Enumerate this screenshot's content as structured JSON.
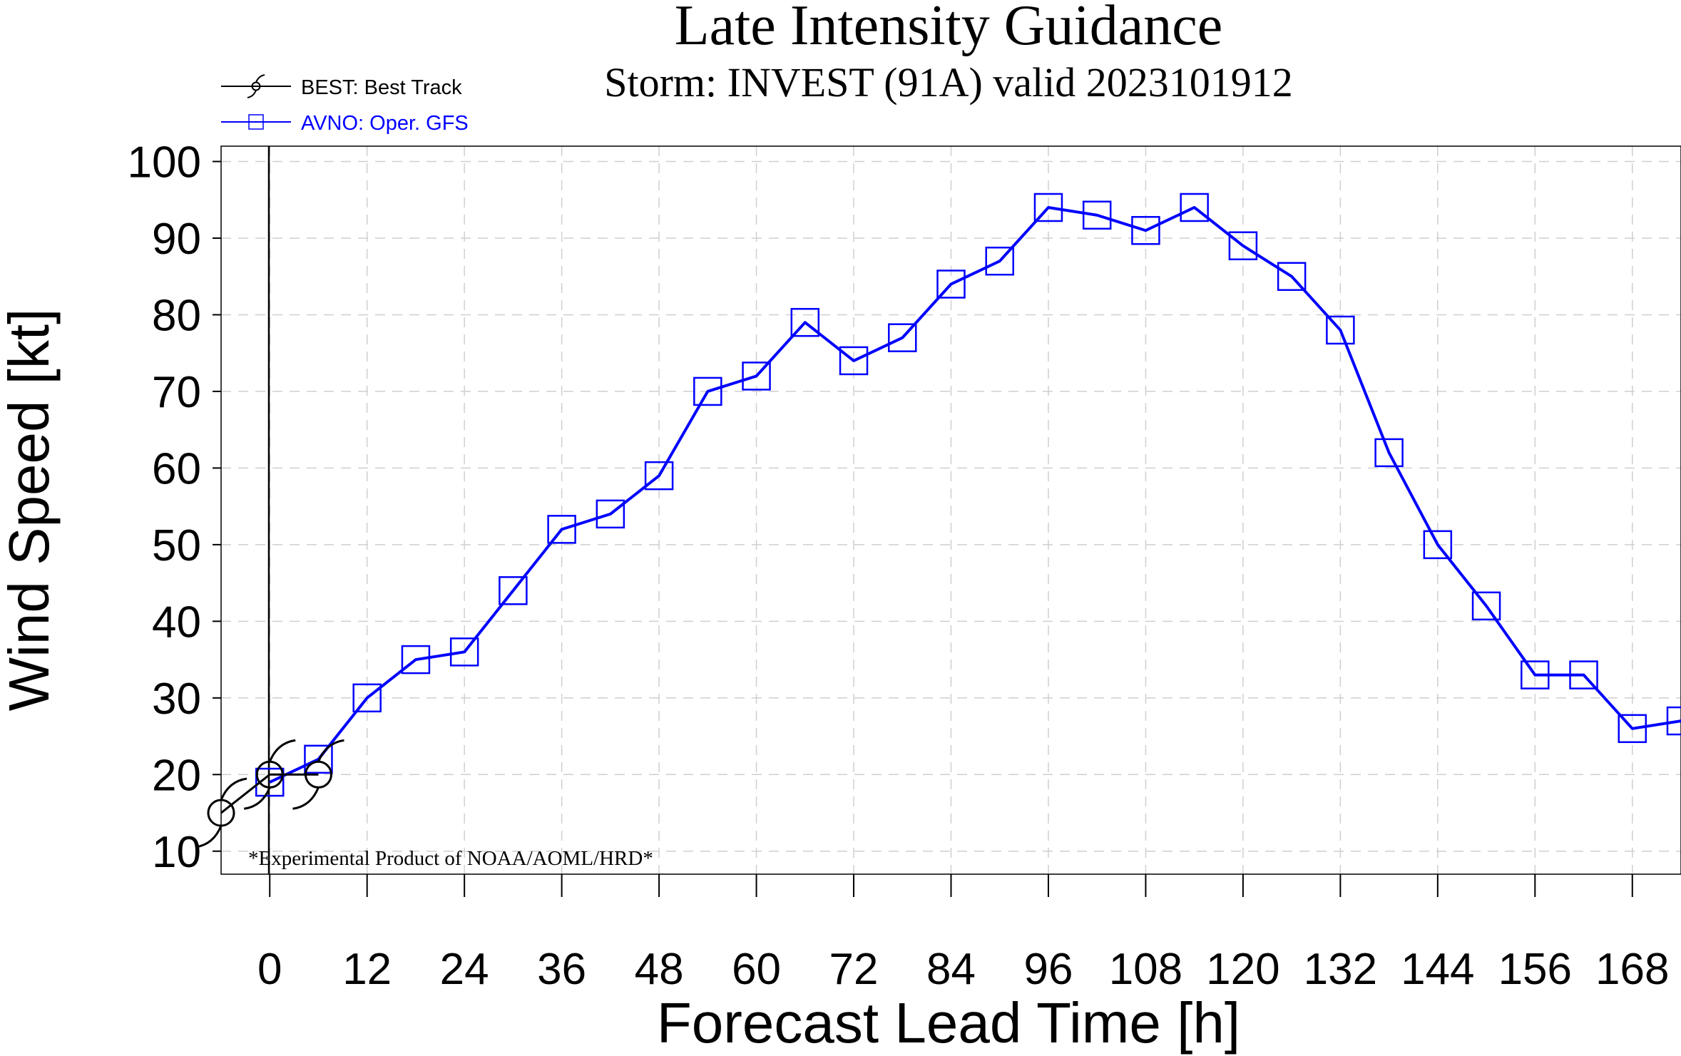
{
  "chart_data": {
    "type": "line",
    "title": "Late Intensity Guidance",
    "subtitle": "Storm: INVEST (91A) valid 2023101912",
    "xlabel": "Forecast Lead Time [h]",
    "ylabel": "Wind Speed [kt]",
    "xlim": [
      -6,
      174
    ],
    "ylim": [
      7,
      102
    ],
    "x_ticks": [
      0,
      12,
      24,
      36,
      48,
      60,
      72,
      84,
      96,
      108,
      120,
      132,
      144,
      156,
      168
    ],
    "y_ticks": [
      10,
      20,
      30,
      40,
      50,
      60,
      70,
      80,
      90,
      100
    ],
    "grid": true,
    "legend_position": "top-left",
    "annotation": "*Experimental Product of NOAA/AOML/HRD*",
    "series": [
      {
        "name": "BEST: Best Track",
        "color": "#000000",
        "marker": "hurricane-symbol",
        "x": [
          -6,
          0,
          6
        ],
        "y": [
          15,
          20,
          20
        ]
      },
      {
        "name": "AVNO: Oper. GFS",
        "color": "#0000ff",
        "marker": "square",
        "x": [
          0,
          6,
          12,
          18,
          24,
          30,
          36,
          42,
          48,
          54,
          60,
          66,
          72,
          78,
          84,
          90,
          96,
          102,
          108,
          114,
          120,
          126,
          132,
          138,
          144,
          150,
          156,
          162,
          168,
          174
        ],
        "y": [
          19,
          22,
          30,
          35,
          36,
          44,
          52,
          54,
          59,
          70,
          72,
          79,
          74,
          77,
          84,
          87,
          94,
          93,
          91,
          94,
          89,
          85,
          78,
          62,
          50,
          42,
          33,
          33,
          26,
          27
        ]
      }
    ]
  }
}
